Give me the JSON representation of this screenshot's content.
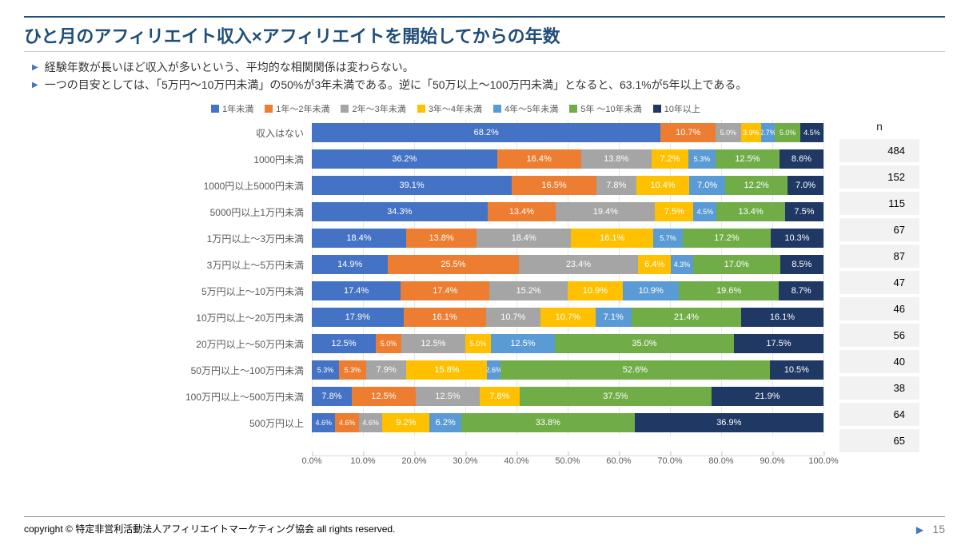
{
  "title": "ひと月のアフィリエイト収入×アフィリエイトを開始してからの年数",
  "bullets": [
    "経験年数が長いほど収入が多いという、平均的な相関関係は変わらない。",
    "一つの目安としては、「5万円～10万円未満」の50%が3年未満である。逆に「50万以上～100万円未満」となると、63.1%が5年以上である。"
  ],
  "chart": {
    "type": "stacked-horizontal-bar",
    "xlim": [
      0,
      100
    ],
    "xtick_step": 10,
    "xtick_suffix": "%",
    "background_color": "#ffffff",
    "grid_color": "#e8e8e8",
    "axis_text_color": "#595959",
    "category_fontsize": 12,
    "value_fontsize": 11,
    "legend": [
      {
        "label": "1年未満",
        "color": "#4472c4"
      },
      {
        "label": "1年～2年未満",
        "color": "#ed7d31"
      },
      {
        "label": "2年～3年未満",
        "color": "#a5a5a5"
      },
      {
        "label": "3年～4年未満",
        "color": "#ffc000"
      },
      {
        "label": "4年～5年未満",
        "color": "#5b9bd5"
      },
      {
        "label": "5年 ～10年未満",
        "color": "#70ad47"
      },
      {
        "label": "10年以上",
        "color": "#1f3864"
      }
    ],
    "rows": [
      {
        "category": "収入はない",
        "n": 484,
        "values": [
          68.2,
          10.7,
          5.0,
          3.9,
          2.7,
          5.0,
          4.5
        ]
      },
      {
        "category": "1000円未満",
        "n": 152,
        "values": [
          36.2,
          16.4,
          13.8,
          7.2,
          5.3,
          12.5,
          8.6
        ]
      },
      {
        "category": "1000円以上5000円未満",
        "n": 115,
        "values": [
          39.1,
          16.5,
          7.8,
          10.4,
          7.0,
          12.2,
          7.0
        ]
      },
      {
        "category": "5000円以上1万円未満",
        "n": 67,
        "values": [
          34.3,
          13.4,
          19.4,
          7.5,
          4.5,
          13.4,
          7.5
        ]
      },
      {
        "category": "1万円以上～3万円未満",
        "n": 87,
        "values": [
          18.4,
          13.8,
          18.4,
          16.1,
          5.7,
          17.2,
          10.3
        ]
      },
      {
        "category": "3万円以上～5万円未満",
        "n": 47,
        "values": [
          14.9,
          25.5,
          23.4,
          6.4,
          4.3,
          17.0,
          8.5
        ]
      },
      {
        "category": "5万円以上～10万円未満",
        "n": 46,
        "values": [
          17.4,
          17.4,
          15.2,
          10.9,
          10.9,
          19.6,
          8.7
        ]
      },
      {
        "category": "10万円以上～20万円未満",
        "n": 56,
        "values": [
          17.9,
          16.1,
          10.7,
          10.7,
          7.1,
          21.4,
          16.1
        ]
      },
      {
        "category": "20万円以上～50万円未満",
        "n": 40,
        "values": [
          12.5,
          5.0,
          12.5,
          5.0,
          12.5,
          35.0,
          17.5
        ]
      },
      {
        "category": "50万円以上～100万円未満",
        "n": 38,
        "values": [
          5.3,
          5.3,
          7.9,
          15.8,
          2.6,
          52.6,
          10.5
        ]
      },
      {
        "category": "100万円以上～500万円未満",
        "n": 64,
        "values": [
          7.8,
          12.5,
          12.5,
          7.8,
          0.0,
          37.5,
          21.9
        ]
      },
      {
        "category": "500万円以上",
        "n": 65,
        "values": [
          4.6,
          4.6,
          4.6,
          9.2,
          6.2,
          33.8,
          36.9
        ]
      }
    ],
    "n_header": "n"
  },
  "footer": {
    "copyright": "copyright © 特定非営利活動法人アフィリエイトマーケティング協会 all rights reserved.",
    "page": "15"
  },
  "colors": {
    "title": "#1f4e79",
    "bullet_marker": "#4472c4",
    "text": "#333333",
    "footer_rule": "#999999"
  }
}
